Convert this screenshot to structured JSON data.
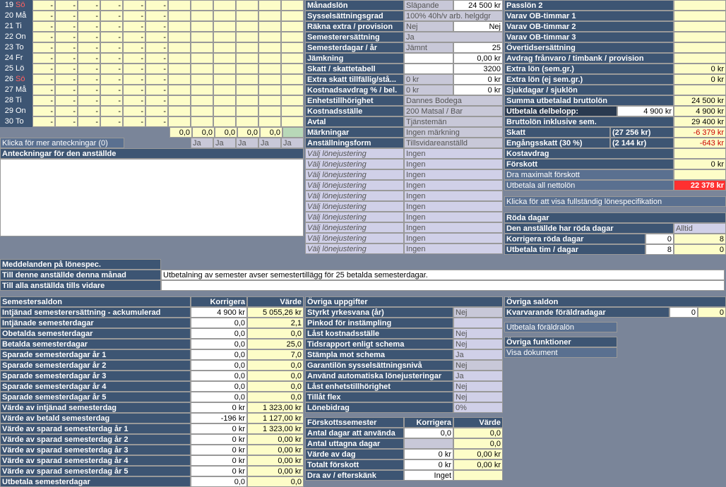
{
  "days": [
    {
      "n": "19",
      "l": "Sö",
      "red": true
    },
    {
      "n": "20",
      "l": "Må"
    },
    {
      "n": "21",
      "l": "Ti"
    },
    {
      "n": "22",
      "l": "On"
    },
    {
      "n": "23",
      "l": "To"
    },
    {
      "n": "24",
      "l": "Fr"
    },
    {
      "n": "25",
      "l": "Lö"
    },
    {
      "n": "26",
      "l": "Sö",
      "red": true
    },
    {
      "n": "27",
      "l": "Må"
    },
    {
      "n": "28",
      "l": "Ti"
    },
    {
      "n": "29",
      "l": "On"
    },
    {
      "n": "30",
      "l": "To"
    }
  ],
  "sumrow": [
    "0,0",
    "0,0",
    "0,0",
    "0,0",
    "0,0"
  ],
  "notesBtn": "Klicka för mer anteckningar (0)",
  "notesHdr": "Anteckningar för den anställde",
  "ja": [
    "Ja",
    "Ja",
    "Ja",
    "Ja",
    "Ja"
  ],
  "midRows": [
    {
      "l": "Månadslön",
      "v1": "Släpande",
      "v2": "24 500 kr"
    },
    {
      "l": "Sysselsättningsgrad",
      "v1": "100% 40h/v arb. helgdgr",
      "v2": ""
    },
    {
      "l": "Räkna extra / provision",
      "v1": "Nej",
      "v2": "Nej"
    },
    {
      "l": "Semesterersättning",
      "v1": "Ja",
      "v2": ""
    },
    {
      "l": "Semesterdagar / år",
      "v1": "Jämnt",
      "v2": "25"
    },
    {
      "l": "Jämkning",
      "v1": "",
      "v2": "0,00 kr"
    },
    {
      "l": "Skatt / skattetabell",
      "v1": "",
      "v2": "3200"
    },
    {
      "l": "Extra skatt tillfällig/stå...",
      "v1": "0 kr",
      "v2": "0 kr"
    },
    {
      "l": "Kostnadsavdrag % / bel.",
      "v1": "0 kr",
      "v2": "0 kr"
    },
    {
      "l": "Enhetstillhörighet",
      "v1": "Dannes Bodega",
      "v2": ""
    },
    {
      "l": "Kostnadsställe",
      "v1": "200 Matsal / Bar",
      "v2": ""
    },
    {
      "l": "Avtal",
      "v1": "Tjänstemän",
      "v2": ""
    },
    {
      "l": "Märkningar",
      "v1": "Ingen märkning",
      "v2": ""
    },
    {
      "l": "Anställningsform",
      "v1": "Tillsvidareanställd",
      "v2": ""
    }
  ],
  "ljust": "Välj lönejustering",
  "ljustV": "Ingen",
  "rightRows": [
    {
      "l": "Passlön 2",
      "v": ""
    },
    {
      "l": "Varav OB-timmar 1",
      "v": ""
    },
    {
      "l": "Varav OB-timmar 2",
      "v": ""
    },
    {
      "l": "Varav OB-timmar 3",
      "v": ""
    },
    {
      "l": "Övertidsersättning",
      "v": ""
    },
    {
      "l": "Avdrag frånvaro / timbank / provision",
      "v": ""
    },
    {
      "l": "Extra lön (sem.gr.)",
      "v": "0 kr"
    },
    {
      "l": "Extra lön (ej sem.gr.)",
      "v": "0 kr"
    },
    {
      "l": "Sjukdagar / sjuklön",
      "v": ""
    }
  ],
  "summa": {
    "l": "Summa utbetalad bruttolön",
    "v": "24 500 kr"
  },
  "delbel": {
    "l": "Utbetala delbelopp:",
    "v1": "4 900 kr",
    "v2": "4 900 kr"
  },
  "brutto": {
    "l": "Bruttolön inklusive sem.",
    "v": "29 400 kr"
  },
  "skatt": {
    "l": "Skatt",
    "p": "(27 256 kr)",
    "v": "-6 379 kr"
  },
  "eng": {
    "l": "Engångsskatt (30 %)",
    "p": "(2 144 kr)",
    "v": "-643 kr"
  },
  "kost": {
    "l": "Kostavdrag",
    "v": ""
  },
  "forsk": {
    "l": "Förskott",
    "v": "0 kr"
  },
  "dramax": {
    "l": "Dra maximalt förskott",
    "v": ""
  },
  "netto": {
    "l": "Utbetala all nettolön",
    "v": "22 378 kr"
  },
  "fullspec": "Klicka för att visa fullständig lönespecifikation",
  "roda": {
    "h": "Röda dagar",
    "r1": "Den anställde har röda dagar",
    "r1v": "Alltid",
    "r2": "Korrigera röda dagar",
    "r2a": "0",
    "r2b": "8",
    "r3": "Utbetala tim / dagar",
    "r3a": "8",
    "r3b": "0"
  },
  "medd": {
    "h": "Meddelanden på lönespec.",
    "r1": "Till denne anställde denna månad",
    "r1v": "Utbetalning av semester avser semestertillägg för 25 betalda semesterdagar.",
    "r2": "Till alla anställda tills vidare"
  },
  "sem": {
    "h": "Semestersaldon",
    "c1": "Korrigera",
    "c2": "Värde",
    "rows": [
      {
        "l": "Intjänad semesterersättning - ackumulerad",
        "k": "4 900 kr",
        "v": "5 055,26 kr"
      },
      {
        "l": "Intjänade semesterdagar",
        "k": "0,0",
        "v": "2,1"
      },
      {
        "l": "Obetalda semesterdagar",
        "k": "0,0",
        "v": "0,0"
      },
      {
        "l": "Betalda semesterdagar",
        "k": "0,0",
        "v": "25,0"
      },
      {
        "l": "Sparade semesterdagar år 1",
        "k": "0,0",
        "v": "7,0"
      },
      {
        "l": "Sparade semesterdagar år 2",
        "k": "0,0",
        "v": "0,0"
      },
      {
        "l": "Sparade semesterdagar år 3",
        "k": "0,0",
        "v": "0,0"
      },
      {
        "l": "Sparade semesterdagar år 4",
        "k": "0,0",
        "v": "0,0"
      },
      {
        "l": "Sparade semesterdagar år 5",
        "k": "0,0",
        "v": "0,0"
      },
      {
        "l": "Värde av intjänad semesterdag",
        "k": "0 kr",
        "v": "1 323,00 kr"
      },
      {
        "l": "Värde av betald semesterdag",
        "k": "-196 kr",
        "v": "1 127,00 kr"
      },
      {
        "l": "Värde av sparad semesterdag år 1",
        "k": "0 kr",
        "v": "1 323,00 kr"
      },
      {
        "l": "Värde av sparad semesterdag år 2",
        "k": "0 kr",
        "v": "0,00 kr"
      },
      {
        "l": "Värde av sparad semesterdag år 3",
        "k": "0 kr",
        "v": "0,00 kr"
      },
      {
        "l": "Värde av sparad semesterdag år 4",
        "k": "0 kr",
        "v": "0,00 kr"
      },
      {
        "l": "Värde av sparad semesterdag år 5",
        "k": "0 kr",
        "v": "0,00 kr"
      },
      {
        "l": "Utbetala semesterdagar",
        "k": "0,0",
        "v": "0,0"
      }
    ]
  },
  "ovr": {
    "h": "Övriga uppgifter",
    "rows": [
      {
        "l": "Styrkt yrkesvana (år)",
        "v": "Nej",
        "g": true
      },
      {
        "l": "Pinkod för instämpling",
        "v": ""
      },
      {
        "l": "Låst kostnadsställe",
        "v": "Nej"
      },
      {
        "l": "Tidsrapport enligt schema",
        "v": "Nej"
      },
      {
        "l": "Stämpla mot schema",
        "v": "Ja"
      },
      {
        "l": "Garantilön sysselsättningsnivå",
        "v": "Nej",
        "gr": true
      },
      {
        "l": "Använd automatiska lönejusteringar",
        "v": "Ja"
      },
      {
        "l": "Låst enhetstillhörighet",
        "v": "Nej"
      },
      {
        "l": "Tillåt flex",
        "v": "Nej"
      },
      {
        "l": "Lönebidrag",
        "v": "0%"
      }
    ]
  },
  "fsk": {
    "h": "Förskottssemester",
    "c1": "Korrigera",
    "c2": "Värde",
    "rows": [
      {
        "l": "Antal dagar att använda",
        "k": "0,0",
        "v": "0,0"
      },
      {
        "l": "Antal uttagna dagar",
        "k": "",
        "v": "0,0"
      },
      {
        "l": "Värde av dag",
        "k": "0 kr",
        "v": "0,00 kr"
      },
      {
        "l": "Totalt förskott",
        "k": "0 kr",
        "v": "0,00 kr"
      },
      {
        "l": "Dra av / efterskänk",
        "k": "Inget",
        "v": ""
      }
    ]
  },
  "os": {
    "h": "Övriga saldon",
    "r1": "Kvarvarande föräldradagar",
    "r1a": "0",
    "r1b": "0",
    "btn1": "Utbetala föräldralön",
    "h2": "Övriga funktioner",
    "btn2": "Visa dokument"
  }
}
